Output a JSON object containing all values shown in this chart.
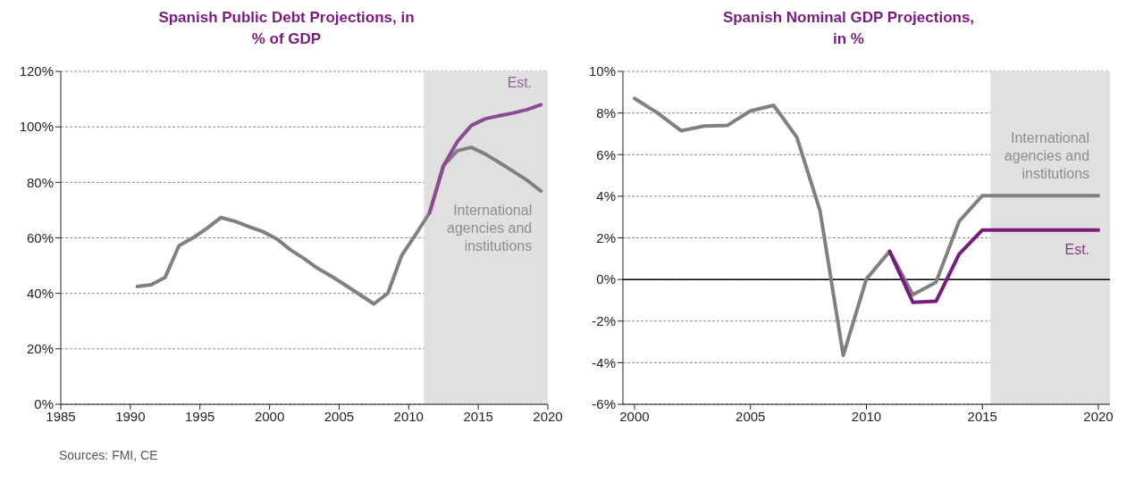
{
  "chart_data": [
    {
      "type": "line",
      "title": "Spanish Public Debt Projections, in % of GDP",
      "xlim": [
        1985,
        2020
      ],
      "xticks": [
        1985,
        1990,
        1995,
        2000,
        2005,
        2010,
        2015,
        2020
      ],
      "ylim": [
        0,
        120
      ],
      "yticks": [
        {
          "value": 0,
          "label": "0%"
        },
        {
          "value": 20,
          "label": "20%"
        },
        {
          "value": 40,
          "label": "40%"
        },
        {
          "value": 60,
          "label": "60%"
        },
        {
          "value": 80,
          "label": "80%"
        },
        {
          "value": 100,
          "label": "100%"
        },
        {
          "value": 120,
          "label": "120%"
        }
      ],
      "grid": "y",
      "marker": "none",
      "line_style": "solid",
      "series": [
        {
          "name": "International agencies and institutions",
          "color": "#808080",
          "x": [
            1990.5,
            1991.5,
            1992.5,
            1993.5,
            1994.5,
            1995.5,
            1996.5,
            1997.5,
            1998.5,
            1999.5,
            2000.5,
            2001.5,
            2002.5,
            2003.5,
            2004.5,
            2005.5,
            2006.5,
            2007.5,
            2008.5,
            2009.5,
            2010.5,
            2011.5,
            2012.5,
            2013.5,
            2014.5,
            2015.5,
            2016.5,
            2017.5,
            2018.5,
            2019.5
          ],
          "values": [
            42.5,
            43.1,
            45.8,
            57.2,
            60,
            63.4,
            67.3,
            66,
            64.1,
            62.3,
            59.7,
            55.7,
            52.5,
            48.9,
            46,
            42.8,
            39.5,
            36.2,
            40,
            53.7,
            61.2,
            69,
            86,
            91.4,
            92.6,
            90.2,
            87.2,
            84,
            80.8,
            76.9
          ]
        },
        {
          "name": "Est.",
          "color": "#8b4c94",
          "x": [
            2011.5,
            2012.5,
            2013.5,
            2014.5,
            2015.5,
            2016.5,
            2017.5,
            2018.5,
            2019.5
          ],
          "values": [
            69,
            86,
            94.7,
            100.5,
            102.9,
            104,
            105,
            106.2,
            108
          ]
        }
      ],
      "bands": [
        {
          "axis": "x",
          "from": 2011.1,
          "to": 2020,
          "color": "#e0e0e0"
        }
      ],
      "annotations": [
        "Sources: FMI, CE"
      ]
    },
    {
      "type": "line",
      "title": "Spanish Nominal GDP Projections, in %",
      "xlim": [
        1999.5,
        2020.5
      ],
      "xticks": [
        2000,
        2005,
        2010,
        2015,
        2020
      ],
      "ylim": [
        -6,
        10
      ],
      "yticks": [
        {
          "value": -6,
          "label": "-6%"
        },
        {
          "value": -4,
          "label": "-4%"
        },
        {
          "value": -2,
          "label": "-2%"
        },
        {
          "value": 0,
          "label": "0%"
        },
        {
          "value": 2,
          "label": "2%"
        },
        {
          "value": 4,
          "label": "4%"
        },
        {
          "value": 6,
          "label": "6%"
        },
        {
          "value": 8,
          "label": "8%"
        },
        {
          "value": 10,
          "label": "10%"
        }
      ],
      "grid": "y",
      "marker": "none",
      "line_style": "solid",
      "series": [
        {
          "name": "International agencies and institutions",
          "color": "#808080",
          "x": [
            2000,
            2001,
            2002,
            2003,
            2004,
            2005,
            2006,
            2007,
            2008,
            2009,
            2010,
            2011,
            2012,
            2013,
            2014,
            2015,
            2016,
            2017,
            2018,
            2019,
            2020
          ],
          "values": [
            8.7,
            8.0,
            7.15,
            7.37,
            7.4,
            8.1,
            8.37,
            6.83,
            3.3,
            -3.65,
            0.03,
            1.35,
            -0.73,
            -0.13,
            2.8,
            4.03,
            4.03,
            4.03,
            4.03,
            4.03,
            4.03
          ]
        },
        {
          "name": "Est.",
          "color": "#7a1a7e",
          "x": [
            2011,
            2012,
            2013,
            2014,
            2015,
            2016,
            2017,
            2018,
            2019,
            2020
          ],
          "values": [
            1.35,
            -1.1,
            -1.05,
            1.22,
            2.38,
            2.38,
            2.38,
            2.38,
            2.38,
            2.38
          ]
        }
      ],
      "bands": [
        {
          "axis": "x",
          "from": 2015.35,
          "to": 2020.5,
          "color": "#e0e0e0"
        }
      ],
      "ref_lines": [
        {
          "axis": "y",
          "value": 0,
          "color": "#000000"
        }
      ]
    }
  ]
}
